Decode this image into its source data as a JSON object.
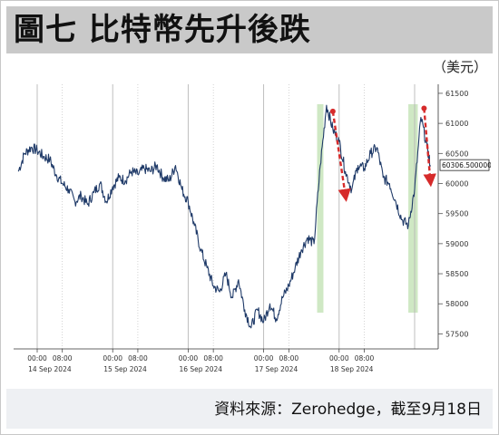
{
  "header": {
    "title": "圖七 比特幣先升後跌"
  },
  "unit_label": "（美元）",
  "source_note": "資料來源：Zerohedge，截至9月18日",
  "chart_data": {
    "type": "line",
    "series": [
      {
        "values": [
          [
            "2024-09-13T18:00",
            60200
          ],
          [
            "2024-09-13T20:00",
            60500
          ],
          [
            "2024-09-13T22:00",
            60600
          ],
          [
            "2024-09-14T00:00",
            60550
          ],
          [
            "2024-09-14T02:00",
            60450
          ],
          [
            "2024-09-14T04:00",
            60400
          ],
          [
            "2024-09-14T06:00",
            60150
          ],
          [
            "2024-09-14T08:00",
            60000
          ],
          [
            "2024-09-14T10:00",
            59900
          ],
          [
            "2024-09-14T12:00",
            59700
          ],
          [
            "2024-09-14T14:00",
            59800
          ],
          [
            "2024-09-14T16:00",
            59650
          ],
          [
            "2024-09-14T18:00",
            59850
          ],
          [
            "2024-09-14T20:00",
            60000
          ],
          [
            "2024-09-14T22:00",
            59700
          ],
          [
            "2024-09-15T00:00",
            59950
          ],
          [
            "2024-09-15T02:00",
            60100
          ],
          [
            "2024-09-15T04:00",
            60050
          ],
          [
            "2024-09-15T06:00",
            60200
          ],
          [
            "2024-09-15T08:00",
            60150
          ],
          [
            "2024-09-15T10:00",
            60250
          ],
          [
            "2024-09-15T12:00",
            60200
          ],
          [
            "2024-09-15T14:00",
            60300
          ],
          [
            "2024-09-15T16:00",
            60100
          ],
          [
            "2024-09-15T18:00",
            60050
          ],
          [
            "2024-09-15T20:00",
            60300
          ],
          [
            "2024-09-15T22:00",
            59900
          ],
          [
            "2024-09-16T00:00",
            59700
          ],
          [
            "2024-09-16T02:00",
            59300
          ],
          [
            "2024-09-16T04:00",
            58900
          ],
          [
            "2024-09-16T06:00",
            58600
          ],
          [
            "2024-09-16T08:00",
            58300
          ],
          [
            "2024-09-16T10:00",
            58200
          ],
          [
            "2024-09-16T12:00",
            58500
          ],
          [
            "2024-09-16T14:00",
            58100
          ],
          [
            "2024-09-16T16:00",
            58400
          ],
          [
            "2024-09-16T18:00",
            57900
          ],
          [
            "2024-09-16T20:00",
            57600
          ],
          [
            "2024-09-16T22:00",
            57900
          ],
          [
            "2024-09-17T00:00",
            57700
          ],
          [
            "2024-09-17T02:00",
            58000
          ],
          [
            "2024-09-17T04:00",
            57750
          ],
          [
            "2024-09-17T06:00",
            58100
          ],
          [
            "2024-09-17T08:00",
            58300
          ],
          [
            "2024-09-17T10:00",
            58600
          ],
          [
            "2024-09-17T12:00",
            58900
          ],
          [
            "2024-09-17T14:00",
            59100
          ],
          [
            "2024-09-17T16:00",
            59000
          ],
          [
            "2024-09-17T18:00",
            60300
          ],
          [
            "2024-09-17T20:00",
            61300
          ],
          [
            "2024-09-17T22:00",
            60900
          ],
          [
            "2024-09-18T00:00",
            60700
          ],
          [
            "2024-09-18T02:00",
            60200
          ],
          [
            "2024-09-18T04:00",
            59900
          ],
          [
            "2024-09-18T06:00",
            60300
          ],
          [
            "2024-09-18T08:00",
            60250
          ],
          [
            "2024-09-18T10:00",
            60500
          ],
          [
            "2024-09-18T12:00",
            60600
          ],
          [
            "2024-09-18T14:00",
            60100
          ],
          [
            "2024-09-18T16:00",
            60000
          ],
          [
            "2024-09-18T18:00",
            59700
          ],
          [
            "2024-09-18T20:00",
            59400
          ],
          [
            "2024-09-18T22:00",
            59300
          ],
          [
            "2024-09-19T00:00",
            59900
          ],
          [
            "2024-09-19T02:00",
            61100
          ],
          [
            "2024-09-19T04:00",
            60600
          ],
          [
            "2024-09-19T05:00",
            60306.5
          ]
        ]
      }
    ],
    "x_tick_times": [
      "00:00",
      "08:00"
    ],
    "x_date_labels": [
      "14 Sep 2024",
      "15 Sep 2024",
      "16 Sep 2024",
      "17 Sep 2024",
      "18 Sep 2024"
    ],
    "y_ticks": [
      57500,
      58000,
      58500,
      59000,
      59500,
      60000,
      60500,
      61000,
      61500
    ],
    "ylim": [
      57250,
      61650
    ],
    "last_value_label": "60306.500000",
    "highlights": [
      {
        "from": "2024-09-17T17:00",
        "to": "2024-09-17T19:00"
      },
      {
        "from": "2024-09-18T22:00",
        "to": "2024-09-19T01:00"
      }
    ],
    "arrows": [
      {
        "from": [
          "2024-09-17T22:00",
          61200
        ],
        "to": [
          "2024-09-18T02:00",
          59800
        ]
      },
      {
        "from": [
          "2024-09-19T03:00",
          61250
        ],
        "to": [
          "2024-09-19T05:00",
          60050
        ]
      }
    ],
    "colors": {
      "line": "#1f3a68",
      "highlight": "#cfe8c4",
      "arrow": "#d62b2b",
      "grid": "#b8b8b8"
    },
    "grid": true
  }
}
